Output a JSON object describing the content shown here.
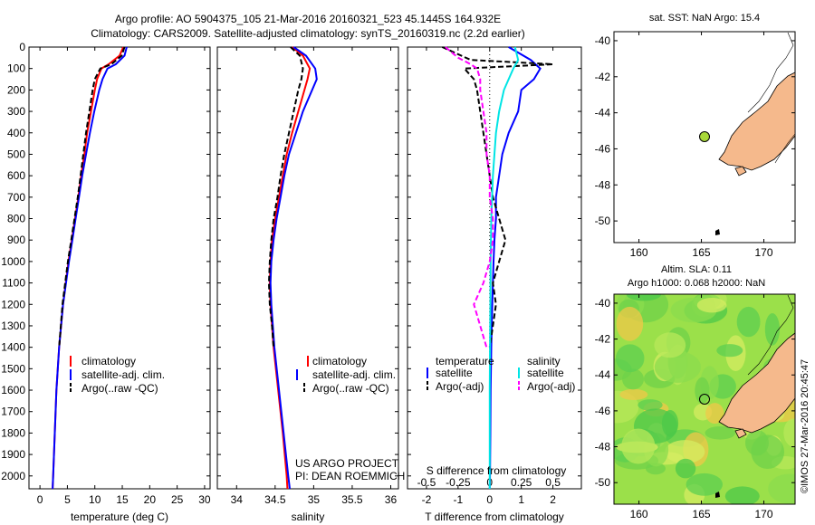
{
  "header": {
    "line1": "Argo profile: AO 5904375_105 21-Mar-2016 20160321_523 45.1445S 164.932E",
    "line2": "Climatology: CARS2009. Satellite-adjusted climatology: synTS_20160319.nc (2.2d earlier)"
  },
  "colors": {
    "clim": "#ff0000",
    "sat": "#0000ff",
    "argo": "#000000",
    "sal_sat": "#00e5e5",
    "sal_argo": "#ff00ff",
    "land": "#f5b98c",
    "sea_map": "#ffffff",
    "sla_field": "#9be04a",
    "dot": "#a8d83a"
  },
  "credits": {
    "line1": "US ARGO PROJECT",
    "line2": "PI: DEAN ROEMMICH"
  },
  "timestamp": "©IMOS 27-Mar-2016 20:45:47",
  "depth_ticks": [
    "0",
    "100",
    "200",
    "300",
    "400",
    "500",
    "600",
    "700",
    "800",
    "900",
    "1000",
    "1100",
    "1200",
    "1300",
    "1400",
    "1500",
    "1600",
    "1700",
    "1800",
    "1900",
    "2000"
  ],
  "legend1": {
    "clim": "climatology",
    "sat": "satellite-adj. clim.",
    "argo": "Argo(..raw -QC)"
  },
  "legend3": {
    "temp_head": "temperature",
    "sal_head": "salinity",
    "t_sat": "satellite",
    "t_argo": "Argo(-adj)",
    "s_sat": "satellite",
    "s_argo": "Argo(-adj)"
  },
  "map1": {
    "title": "sat. SST: NaN Argo: 15.4",
    "yticks": [
      "-40",
      "-42",
      "-44",
      "-46",
      "-48",
      "-50"
    ],
    "xticks": [
      "160",
      "165",
      "170"
    ]
  },
  "map2": {
    "title1": "Altim. SLA: 0.11",
    "title2": "Argo h1000: 0.068 h2000: NaN",
    "yticks": [
      "-40",
      "-42",
      "-44",
      "-46",
      "-48",
      "-50"
    ],
    "xticks": [
      "160",
      "165",
      "170"
    ]
  },
  "chart_data": [
    {
      "type": "line",
      "xlabel": "temperature (deg C)",
      "xticks": [
        "0",
        "5",
        "10",
        "15",
        "20",
        "25",
        "30"
      ],
      "xlim": [
        -2,
        31
      ],
      "ylim": [
        2060,
        0
      ],
      "series": [
        {
          "name": "climatology",
          "color": "#ff0000",
          "y": [
            0,
            40,
            80,
            100,
            150,
            200,
            300,
            400,
            500,
            600,
            700,
            800,
            900,
            1000,
            1200,
            1400,
            1600,
            1800,
            2000,
            2060
          ],
          "values": [
            15.2,
            14.5,
            12.5,
            11.2,
            10.4,
            10.0,
            9.3,
            8.6,
            8.1,
            7.5,
            7.0,
            6.4,
            5.8,
            5.2,
            4.2,
            3.5,
            3.0,
            2.7,
            2.4,
            2.3
          ]
        },
        {
          "name": "satellite-adj. clim.",
          "color": "#0000ff",
          "y": [
            0,
            40,
            80,
            100,
            150,
            200,
            300,
            400,
            500,
            600,
            700,
            800,
            900,
            1000,
            1200,
            1400,
            1600,
            1800,
            2000,
            2060
          ],
          "values": [
            15.8,
            15.4,
            13.8,
            12.3,
            11.4,
            10.8,
            9.9,
            9.1,
            8.4,
            7.7,
            7.1,
            6.5,
            5.9,
            5.3,
            4.2,
            3.5,
            3.0,
            2.7,
            2.4,
            2.3
          ]
        },
        {
          "name": "Argo(..raw -QC)",
          "color": "#000000",
          "dashed": true,
          "y": [
            0,
            40,
            80,
            100,
            150,
            200,
            300,
            400,
            500,
            600,
            700,
            800,
            900,
            1000,
            1200,
            1400
          ],
          "values": [
            15.4,
            14.9,
            13.0,
            11.0,
            10.0,
            9.6,
            9.0,
            8.4,
            7.9,
            7.4,
            6.9,
            6.3,
            5.7,
            5.1,
            4.1,
            3.5
          ]
        }
      ]
    },
    {
      "type": "line",
      "xlabel": "salinity",
      "xticks": [
        "34",
        "34.5",
        "35",
        "35.5",
        "36"
      ],
      "xlim": [
        33.75,
        36.1
      ],
      "ylim": [
        2060,
        0
      ],
      "series": [
        {
          "name": "climatology",
          "color": "#ff0000",
          "y": [
            0,
            40,
            100,
            150,
            200,
            300,
            400,
            500,
            600,
            700,
            800,
            900,
            1000,
            1100,
            1200,
            1400,
            1600,
            1800,
            2000,
            2060
          ],
          "values": [
            34.72,
            34.86,
            34.95,
            34.92,
            34.88,
            34.8,
            34.72,
            34.65,
            34.6,
            34.55,
            34.5,
            34.46,
            34.44,
            34.43,
            34.44,
            34.48,
            34.54,
            34.6,
            34.65,
            34.66
          ]
        },
        {
          "name": "satellite-adj. clim.",
          "color": "#0000ff",
          "y": [
            0,
            40,
            100,
            150,
            200,
            300,
            400,
            500,
            600,
            700,
            800,
            900,
            1000,
            1100,
            1200,
            1400,
            1600,
            1800,
            2000,
            2060
          ],
          "values": [
            34.74,
            34.9,
            35.02,
            35.04,
            34.98,
            34.86,
            34.77,
            34.68,
            34.62,
            34.57,
            34.52,
            34.48,
            34.45,
            34.44,
            34.45,
            34.49,
            34.55,
            34.61,
            34.67,
            34.69
          ]
        },
        {
          "name": "Argo(..raw -QC)",
          "color": "#000000",
          "dashed": true,
          "y": [
            0,
            40,
            100,
            150,
            200,
            300,
            400,
            500,
            600,
            700,
            800,
            900,
            1000,
            1100,
            1200,
            1300,
            1400
          ],
          "values": [
            34.7,
            34.82,
            34.86,
            34.84,
            34.8,
            34.74,
            34.68,
            34.62,
            34.57,
            34.53,
            34.48,
            34.45,
            34.43,
            34.42,
            34.43,
            34.46,
            34.48
          ]
        }
      ]
    },
    {
      "type": "line",
      "xlabel": "T difference from climatology",
      "top_label": "S difference from climatology",
      "xticks": [
        "-2",
        "-1",
        "0",
        "1",
        "2"
      ],
      "top_ticks": [
        "-0.5",
        "-0.25",
        "0",
        "0.25",
        "0.5"
      ],
      "xlim": [
        -2.6,
        2.9
      ],
      "ylim": [
        2060,
        0
      ],
      "series": [
        {
          "name": "temperature satellite",
          "color": "#0000ff",
          "y": [
            0,
            60,
            100,
            150,
            200,
            300,
            400,
            500,
            600,
            700,
            800,
            900,
            1000,
            1200,
            1400,
            1600,
            1800,
            2000,
            2060
          ],
          "values": [
            0.6,
            1.3,
            1.6,
            1.4,
            1.0,
            0.9,
            0.6,
            0.4,
            0.3,
            0.2,
            0.2,
            0.15,
            0.12,
            0.08,
            0.05,
            0.03,
            0.02,
            0.01,
            0.0
          ]
        },
        {
          "name": "temperature Argo(-adj)",
          "color": "#000000",
          "dashed": true,
          "y": [
            0,
            60,
            80,
            100,
            150,
            200,
            300,
            400,
            500,
            600,
            700,
            800,
            900,
            1000,
            1100,
            1200,
            1300,
            1400
          ],
          "values": [
            -1.5,
            -0.6,
            2.0,
            -0.8,
            -0.5,
            -0.4,
            -0.3,
            -0.2,
            -0.1,
            0.0,
            0.1,
            0.3,
            0.5,
            0.3,
            0.1,
            0.2,
            0.1,
            0.0
          ]
        },
        {
          "name": "salinity satellite",
          "color": "#00e5e5",
          "y": [
            0,
            60,
            100,
            150,
            200,
            300,
            400,
            500,
            600,
            800,
            1000,
            1200,
            1400,
            1600,
            1800,
            2000,
            2060
          ],
          "values": [
            0.8,
            0.9,
            0.75,
            0.6,
            0.45,
            0.3,
            0.2,
            0.15,
            0.1,
            0.05,
            0.03,
            0.02,
            0.01,
            0.0,
            0.0,
            0.0,
            0.0
          ]
        },
        {
          "name": "salinity Argo(-adj)",
          "color": "#ff00ff",
          "dashed": true,
          "y": [
            0,
            50,
            80,
            100,
            150,
            200,
            300,
            400,
            500,
            600,
            700,
            800,
            900,
            1000,
            1100,
            1200,
            1300,
            1400
          ],
          "values": [
            -1.4,
            -1.0,
            -0.6,
            -0.4,
            -0.3,
            -0.3,
            -0.2,
            -0.1,
            -0.1,
            0.0,
            0.0,
            0.1,
            0.1,
            0.0,
            -0.2,
            -0.5,
            -0.3,
            -0.1
          ]
        }
      ]
    }
  ]
}
